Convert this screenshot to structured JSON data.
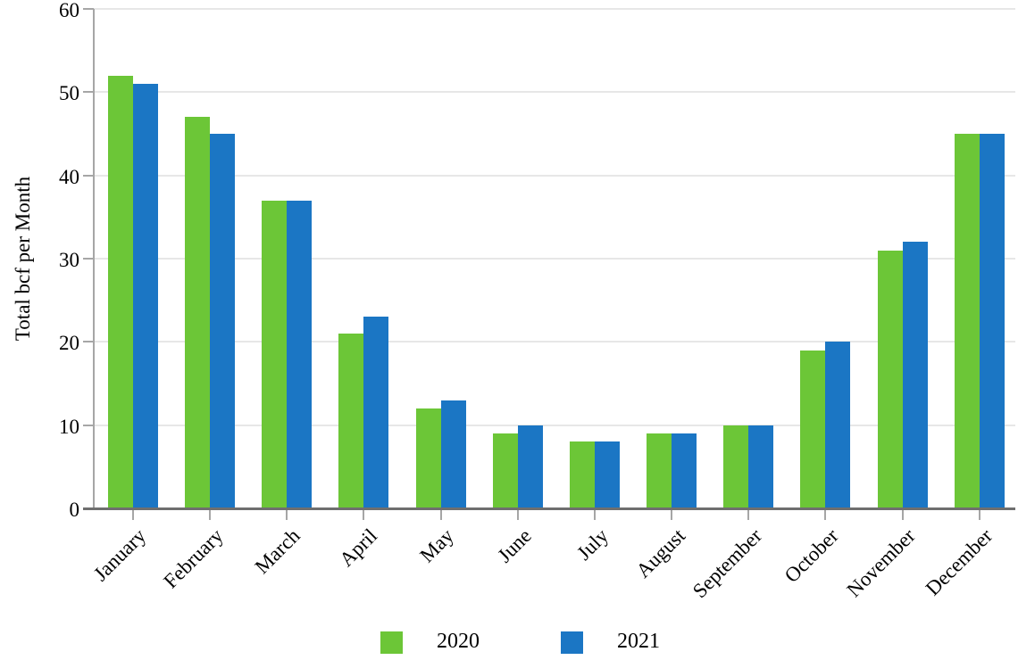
{
  "chart_data": {
    "type": "bar",
    "title": "",
    "xlabel": "",
    "ylabel": "Total bcf per Month",
    "ylim": [
      0,
      60
    ],
    "yticks": [
      0,
      10,
      20,
      30,
      40,
      50,
      60
    ],
    "grid": "horizontal gridlines on",
    "legend_position": "bottom",
    "categories": [
      "January",
      "February",
      "March",
      "April",
      "May",
      "June",
      "July",
      "August",
      "September",
      "October",
      "November",
      "December"
    ],
    "series": [
      {
        "name": "2020",
        "color": "#6CC637",
        "values": [
          52,
          47,
          37,
          21,
          12,
          9,
          8,
          9,
          10,
          19,
          31,
          45
        ]
      },
      {
        "name": "2021",
        "color": "#1B76C4",
        "values": [
          51,
          45,
          37,
          23,
          13,
          10,
          8,
          9,
          10,
          20,
          32,
          45
        ]
      }
    ],
    "colors": {
      "gridline": "#E7E7E7",
      "y_axis_line": "#A6A6A6",
      "x_axis_line": "#6F6F6F",
      "tick": "#A6A6A6",
      "text": "#000000"
    }
  }
}
